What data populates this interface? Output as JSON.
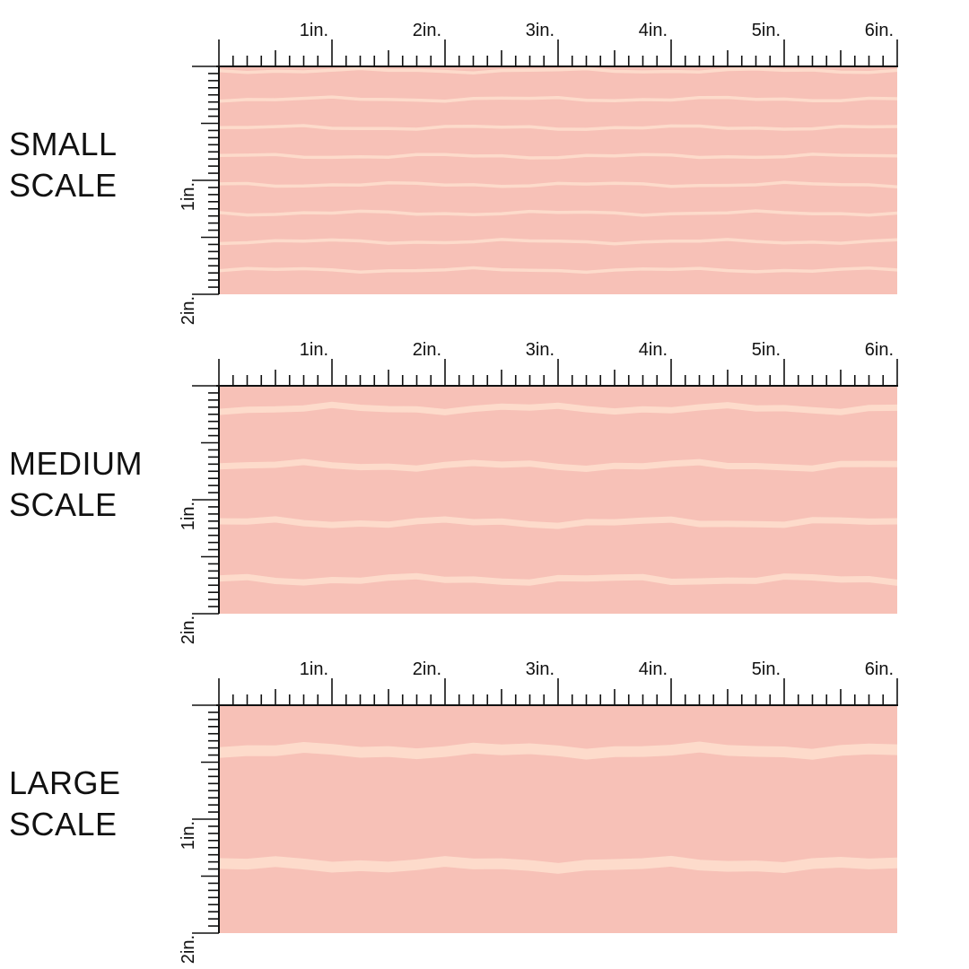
{
  "colors": {
    "fabric": "#F7C1B7",
    "stripe": "#FDDCCB",
    "ruler": "#111111",
    "background": "#FFFFFF"
  },
  "ruler": {
    "horizontal_labels": [
      "1in.",
      "2in.",
      "3in.",
      "4in.",
      "5in.",
      "6in."
    ],
    "vertical_labels": [
      "1in.",
      "2in."
    ]
  },
  "sections": [
    {
      "id": "small",
      "label_line1": "SMALL",
      "label_line2": "SCALE",
      "stripe_count": 8
    },
    {
      "id": "medium",
      "label_line1": "MEDIUM",
      "label_line2": "SCALE",
      "stripe_count": 4
    },
    {
      "id": "large",
      "label_line1": "LARGE",
      "label_line2": "SCALE",
      "stripe_count": 2
    }
  ]
}
